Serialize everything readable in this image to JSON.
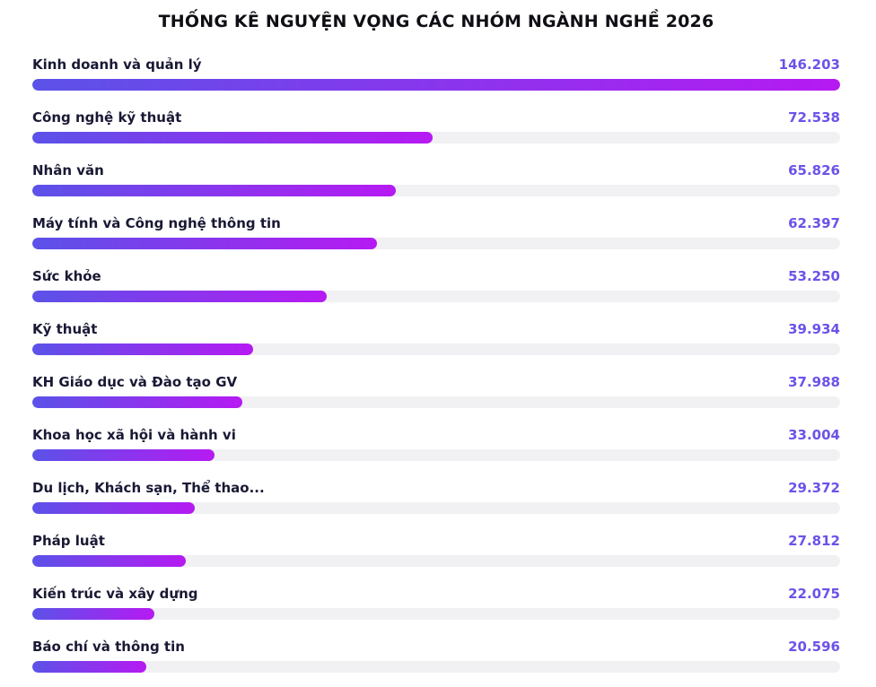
{
  "title": "THỐNG KÊ NGUYỆN VỌNG CÁC NHÓM NGÀNH NGHỀ 2026",
  "colors": {
    "bar_gradient_start": "#5b52e8",
    "bar_gradient_end": "#b61af2",
    "bar_track": "#f1f1f4",
    "value_text": "#6d52e9",
    "label_text": "#191935",
    "title_text": "#0e0e14"
  },
  "chart_data": {
    "type": "bar",
    "orientation": "horizontal",
    "title": "THỐNG KÊ NGUYỆN VỌNG CÁC NHÓM NGÀNH NGHỀ 2026",
    "xlabel": "",
    "ylabel": "",
    "xlim": [
      0,
      146203
    ],
    "grid": false,
    "legend": false,
    "categories": [
      "Kinh doanh và quản lý",
      "Công nghệ kỹ thuật",
      "Nhân văn",
      "Máy tính và Công nghệ thông tin",
      "Sức khỏe",
      "Kỹ thuật",
      "KH Giáo dục và Đào tạo GV",
      "Khoa học xã hội và hành vi",
      "Du lịch, Khách sạn, Thể thao...",
      "Pháp luật",
      "Kiến trúc và xây dựng",
      "Báo chí và thông tin"
    ],
    "values": [
      146203,
      72538,
      65826,
      62397,
      53250,
      39934,
      37988,
      33004,
      29372,
      27812,
      22075,
      20596
    ],
    "display_values": [
      "146.203",
      "72.538",
      "65.826",
      "62.397",
      "53.250",
      "39.934",
      "37.988",
      "33.004",
      "29.372",
      "27.812",
      "22.075",
      "20.596"
    ]
  }
}
